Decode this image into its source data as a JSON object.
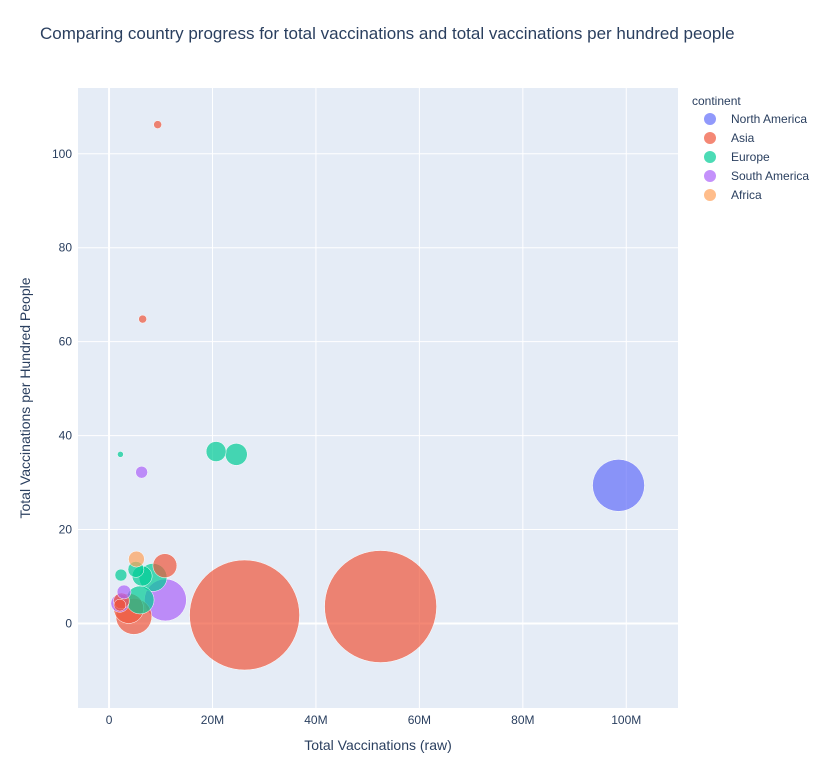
{
  "chart_data": {
    "type": "scatter",
    "title": "Comparing country progress for total vaccinations and total vaccinations per hundred people",
    "xlabel": "Total Vaccinations (raw)",
    "ylabel": "Total Vaccinations per Hundred People",
    "xlim": [
      -6000000,
      110000000
    ],
    "ylim": [
      -18,
      114
    ],
    "x_ticks": [
      0,
      20000000,
      40000000,
      60000000,
      80000000,
      100000000
    ],
    "x_tick_labels": [
      "0",
      "20M",
      "40M",
      "60M",
      "80M",
      "100M"
    ],
    "y_ticks": [
      0,
      20,
      40,
      60,
      80,
      100
    ],
    "y_tick_labels": [
      "0",
      "20",
      "40",
      "60",
      "80",
      "100"
    ],
    "grid": true,
    "legend": {
      "title": "continent",
      "placement": "top-right",
      "entries": [
        {
          "name": "North America",
          "color": "#636efa"
        },
        {
          "name": "Asia",
          "color": "#ef553b"
        },
        {
          "name": "Europe",
          "color": "#00cc96"
        },
        {
          "name": "South America",
          "color": "#ab63fa"
        },
        {
          "name": "Africa",
          "color": "#ffa15a"
        }
      ]
    },
    "size_encoding": "bubble area relative",
    "series": [
      {
        "name": "North America",
        "color": "#636efa",
        "points": [
          {
            "x": 98500000,
            "y": 29.4,
            "r": 26
          }
        ]
      },
      {
        "name": "Asia",
        "color": "#ef553b",
        "points": [
          {
            "x": 52500000,
            "y": 3.6,
            "r": 56
          },
          {
            "x": 26200000,
            "y": 1.8,
            "r": 55
          },
          {
            "x": 9400000,
            "y": 106.2,
            "r": 4
          },
          {
            "x": 6500000,
            "y": 64.8,
            "r": 4
          },
          {
            "x": 10800000,
            "y": 12.3,
            "r": 12
          },
          {
            "x": 4800000,
            "y": 1.5,
            "r": 18
          },
          {
            "x": 3800000,
            "y": 3.2,
            "r": 15
          },
          {
            "x": 2400000,
            "y": 4.8,
            "r": 8
          },
          {
            "x": 2100000,
            "y": 3.9,
            "r": 6
          }
        ]
      },
      {
        "name": "Europe",
        "color": "#00cc96",
        "points": [
          {
            "x": 20700000,
            "y": 36.6,
            "r": 10
          },
          {
            "x": 24600000,
            "y": 36.0,
            "r": 11
          },
          {
            "x": 2200000,
            "y": 36.0,
            "r": 3
          },
          {
            "x": 8500000,
            "y": 9.8,
            "r": 14
          },
          {
            "x": 6000000,
            "y": 5.0,
            "r": 14
          },
          {
            "x": 6400000,
            "y": 10.1,
            "r": 10
          },
          {
            "x": 5200000,
            "y": 11.5,
            "r": 8
          },
          {
            "x": 2300000,
            "y": 10.3,
            "r": 6
          }
        ]
      },
      {
        "name": "South America",
        "color": "#ab63fa",
        "points": [
          {
            "x": 6300000,
            "y": 32.2,
            "r": 6
          },
          {
            "x": 10900000,
            "y": 5.0,
            "r": 21
          },
          {
            "x": 2900000,
            "y": 6.7,
            "r": 7
          },
          {
            "x": 2100000,
            "y": 4.3,
            "r": 9
          }
        ]
      },
      {
        "name": "Africa",
        "color": "#ffa15a",
        "points": [
          {
            "x": 5300000,
            "y": 13.7,
            "r": 8
          }
        ]
      }
    ]
  }
}
